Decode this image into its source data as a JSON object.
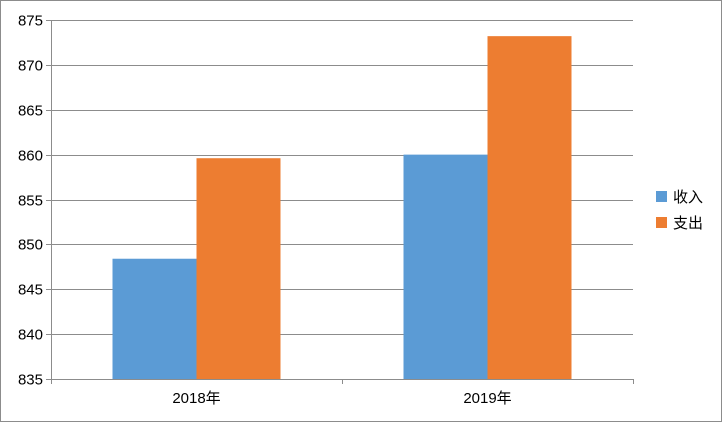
{
  "chart_data": {
    "type": "bar",
    "categories": [
      "2018年",
      "2019年"
    ],
    "series": [
      {
        "name": "收入",
        "values": [
          848.4,
          860.0
        ],
        "color": "#5B9BD5"
      },
      {
        "name": "支出",
        "values": [
          859.6,
          873.2
        ],
        "color": "#ED7D31"
      }
    ],
    "ylim": [
      835,
      875
    ],
    "yticks": [
      "835",
      "840",
      "845",
      "850",
      "855",
      "860",
      "865",
      "870",
      "875"
    ],
    "grid": true,
    "legend": "right"
  }
}
